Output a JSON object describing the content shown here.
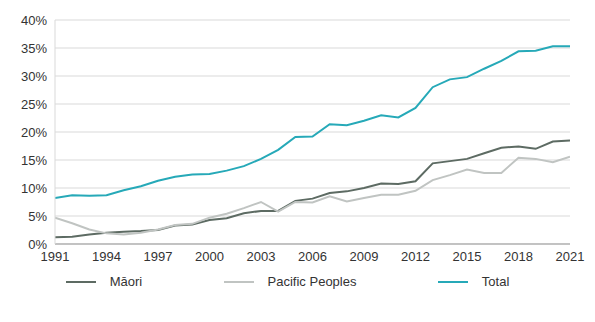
{
  "chart_data": {
    "type": "line",
    "x": [
      1991,
      1992,
      1993,
      1994,
      1995,
      1996,
      1997,
      1998,
      1999,
      2000,
      2001,
      2002,
      2003,
      2004,
      2005,
      2006,
      2007,
      2008,
      2009,
      2010,
      2011,
      2012,
      2013,
      2014,
      2015,
      2016,
      2017,
      2018,
      2019,
      2020,
      2021
    ],
    "series": [
      {
        "name": "Māori",
        "color": "#5d6b63",
        "values": [
          1.2,
          1.3,
          1.7,
          2.0,
          2.2,
          2.3,
          2.5,
          3.3,
          3.5,
          4.3,
          4.6,
          5.5,
          5.9,
          5.9,
          7.7,
          8.1,
          9.1,
          9.4,
          10.0,
          10.8,
          10.7,
          11.2,
          14.4,
          14.8,
          15.2,
          16.2,
          17.2,
          17.4,
          17.0,
          18.3,
          18.5
        ]
      },
      {
        "name": "Pacific Peoples",
        "color": "#c0c4c2",
        "values": [
          4.7,
          3.7,
          2.6,
          1.9,
          1.7,
          2.0,
          2.6,
          3.4,
          3.6,
          4.7,
          5.4,
          6.4,
          7.5,
          5.8,
          7.5,
          7.4,
          8.5,
          7.6,
          8.2,
          8.8,
          8.8,
          9.5,
          11.4,
          12.3,
          13.3,
          12.7,
          12.7,
          15.4,
          15.2,
          14.6,
          15.6
        ]
      },
      {
        "name": "Total",
        "color": "#26a9b8",
        "values": [
          8.2,
          8.7,
          8.6,
          8.7,
          9.6,
          10.3,
          11.3,
          12.0,
          12.4,
          12.5,
          13.1,
          13.9,
          15.2,
          16.8,
          19.1,
          19.2,
          21.4,
          21.2,
          22.0,
          23.0,
          22.6,
          24.3,
          28.0,
          29.4,
          29.8,
          31.3,
          32.7,
          34.4,
          34.5,
          35.3,
          35.3
        ]
      }
    ],
    "xlim": [
      1991,
      2021
    ],
    "xticks": [
      1991,
      1994,
      1997,
      2000,
      2003,
      2006,
      2009,
      2012,
      2015,
      2018,
      2021
    ],
    "ylim": [
      0,
      40
    ],
    "yticks": [
      {
        "value": 0,
        "label": "0%"
      },
      {
        "value": 5,
        "label": "5%"
      },
      {
        "value": 10,
        "label": "10%"
      },
      {
        "value": 15,
        "label": "15%"
      },
      {
        "value": 20,
        "label": "20%"
      },
      {
        "value": 25,
        "label": "25%"
      },
      {
        "value": 30,
        "label": "30%"
      },
      {
        "value": 35,
        "label": "35%"
      },
      {
        "value": 40,
        "label": "40%"
      }
    ],
    "grid": true,
    "legend": "bottom"
  }
}
